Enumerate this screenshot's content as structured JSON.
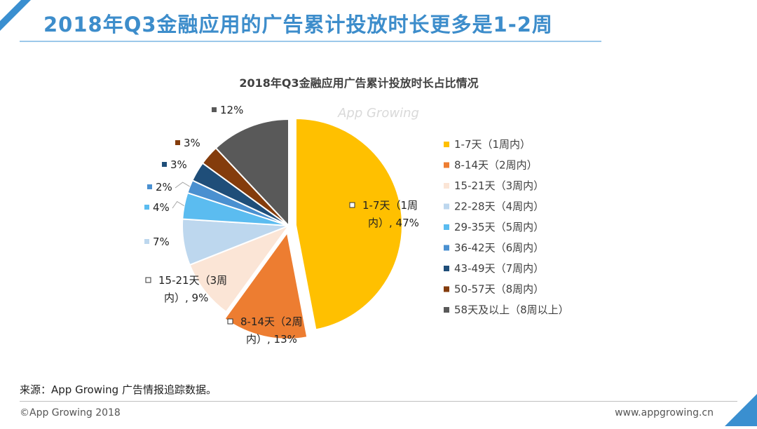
{
  "header": {
    "title": "2018年Q3金融应用的广告累计投放时长更多是1-2周"
  },
  "chart_data": {
    "type": "pie",
    "title": "2018年Q3金融应用广告累计投放时长占比情况",
    "watermark": "App Growing",
    "categories": [
      "1-7天（1周内）",
      "8-14天（2周内）",
      "15-21天（3周内）",
      "22-28天（4周内）",
      "29-35天（5周内）",
      "36-42天（6周内）",
      "43-49天（7周内）",
      "50-57天（8周内）",
      "58天及以上（8周以上）"
    ],
    "values": [
      47,
      13,
      9,
      7,
      4,
      2,
      3,
      3,
      12
    ],
    "colors": [
      "#ffc000",
      "#ed7d31",
      "#fbe5d6",
      "#bdd7ee",
      "#5bbcf0",
      "#4a90d0",
      "#1f4e79",
      "#843c0c",
      "#595959"
    ],
    "data_labels": [
      [
        "1-7天（1周",
        "内）, 47%"
      ],
      [
        "8-14天（2周",
        "内）, 13%"
      ],
      [
        "15-21天（3周",
        "内）, 9%"
      ],
      [
        "7%"
      ],
      [
        "4%"
      ],
      [
        "2%"
      ],
      [
        "3%"
      ],
      [
        "3%"
      ],
      [
        "12%"
      ]
    ],
    "legend_position": "right",
    "exploded_slices": [
      0,
      1
    ]
  },
  "footer": {
    "source": "来源：App Growing 广告情报追踪数据。",
    "copyright": "©App Growing 2018",
    "url": "www.appgrowing.cn"
  }
}
